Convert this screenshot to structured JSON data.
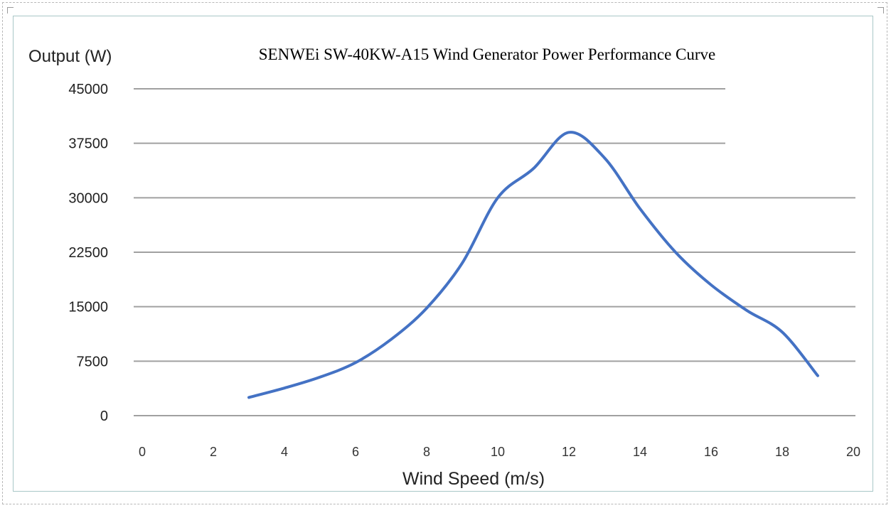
{
  "chart_data": {
    "type": "line",
    "title": "SENWEi SW-40KW-A15 Wind Generator Power Performance Curve",
    "xlabel": "Wind Speed (m/s)",
    "ylabel": "Output (W)",
    "xlim": [
      0,
      20
    ],
    "ylim": [
      0,
      45000
    ],
    "x_ticks": [
      "0",
      "2",
      "4",
      "6",
      "8",
      "10",
      "12",
      "14",
      "16",
      "18",
      "20"
    ],
    "y_ticks": [
      "45000",
      "37500",
      "30000",
      "22500",
      "15000",
      "7500",
      "0"
    ],
    "grid": true,
    "legend": "none",
    "series": [
      {
        "color": "#4472c4",
        "x": [
          3,
          4,
          5,
          6,
          7,
          8,
          9,
          10,
          11,
          12,
          13,
          14,
          15,
          16,
          17,
          18,
          19
        ],
        "y": [
          2500,
          3800,
          5300,
          7300,
          10500,
          14800,
          21000,
          30000,
          34000,
          39000,
          35500,
          28500,
          22500,
          18000,
          14500,
          11500,
          5500
        ]
      }
    ]
  }
}
